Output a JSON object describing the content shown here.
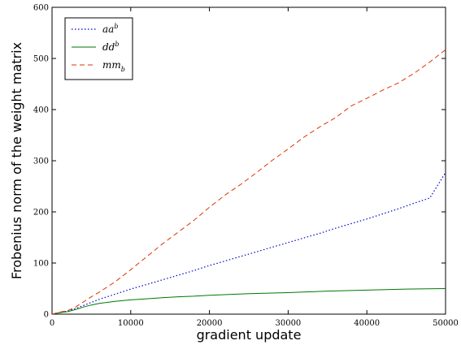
{
  "chart_data": {
    "type": "line",
    "title": "",
    "xlabel": "gradient update",
    "ylabel": "Frobenius norm of the weight matrix",
    "xlim": [
      0,
      50000
    ],
    "ylim": [
      0,
      600
    ],
    "x_ticks": [
      0,
      10000,
      20000,
      30000,
      40000,
      50000
    ],
    "y_ticks": [
      0,
      100,
      200,
      300,
      400,
      500,
      600
    ],
    "grid": false,
    "legend_position": "top-left",
    "series": [
      {
        "name_base": "aa",
        "name_sup": "b",
        "name_sub": "",
        "color": "#0000cc",
        "style": "dotted",
        "points": [
          [
            0,
            0
          ],
          [
            1000,
            3
          ],
          [
            2000,
            6
          ],
          [
            3000,
            11
          ],
          [
            4000,
            17
          ],
          [
            5000,
            23
          ],
          [
            6000,
            29
          ],
          [
            7000,
            34
          ],
          [
            8000,
            39
          ],
          [
            9000,
            44
          ],
          [
            10000,
            49
          ],
          [
            12000,
            58
          ],
          [
            14000,
            67
          ],
          [
            16000,
            76
          ],
          [
            18000,
            85
          ],
          [
            20000,
            95
          ],
          [
            22000,
            104
          ],
          [
            24000,
            113
          ],
          [
            26000,
            122
          ],
          [
            28000,
            131
          ],
          [
            30000,
            140
          ],
          [
            32000,
            149
          ],
          [
            34000,
            158
          ],
          [
            36000,
            168
          ],
          [
            38000,
            177
          ],
          [
            40000,
            186
          ],
          [
            42000,
            196
          ],
          [
            44000,
            206
          ],
          [
            46000,
            217
          ],
          [
            48000,
            227
          ],
          [
            50000,
            277
          ]
        ]
      },
      {
        "name_base": "dd",
        "name_sup": "b",
        "name_sub": "",
        "color": "#007700",
        "style": "solid",
        "points": [
          [
            0,
            0
          ],
          [
            1000,
            3
          ],
          [
            2000,
            5
          ],
          [
            3000,
            9
          ],
          [
            4000,
            14
          ],
          [
            5000,
            18
          ],
          [
            6000,
            21
          ],
          [
            8000,
            25
          ],
          [
            10000,
            28
          ],
          [
            12000,
            30
          ],
          [
            14000,
            32
          ],
          [
            16000,
            34
          ],
          [
            18000,
            35
          ],
          [
            20000,
            37
          ],
          [
            25000,
            40
          ],
          [
            30000,
            42
          ],
          [
            35000,
            45
          ],
          [
            40000,
            47
          ],
          [
            45000,
            49
          ],
          [
            50000,
            50
          ]
        ]
      },
      {
        "name_base": "mm",
        "name_sup": "",
        "name_sub": "b",
        "color": "#dd3300",
        "style": "dashed",
        "points": [
          [
            0,
            0
          ],
          [
            1000,
            4
          ],
          [
            2000,
            7
          ],
          [
            3000,
            14
          ],
          [
            4000,
            24
          ],
          [
            5000,
            34
          ],
          [
            6000,
            43
          ],
          [
            8000,
            63
          ],
          [
            10000,
            87
          ],
          [
            12000,
            112
          ],
          [
            14000,
            137
          ],
          [
            16000,
            160
          ],
          [
            18000,
            183
          ],
          [
            20000,
            209
          ],
          [
            22000,
            233
          ],
          [
            24000,
            254
          ],
          [
            26000,
            277
          ],
          [
            28000,
            301
          ],
          [
            30000,
            323
          ],
          [
            32000,
            346
          ],
          [
            34000,
            366
          ],
          [
            36000,
            384
          ],
          [
            38000,
            407
          ],
          [
            40000,
            422
          ],
          [
            42000,
            438
          ],
          [
            44000,
            452
          ],
          [
            46000,
            471
          ],
          [
            48000,
            493
          ],
          [
            50000,
            517
          ]
        ]
      }
    ]
  }
}
